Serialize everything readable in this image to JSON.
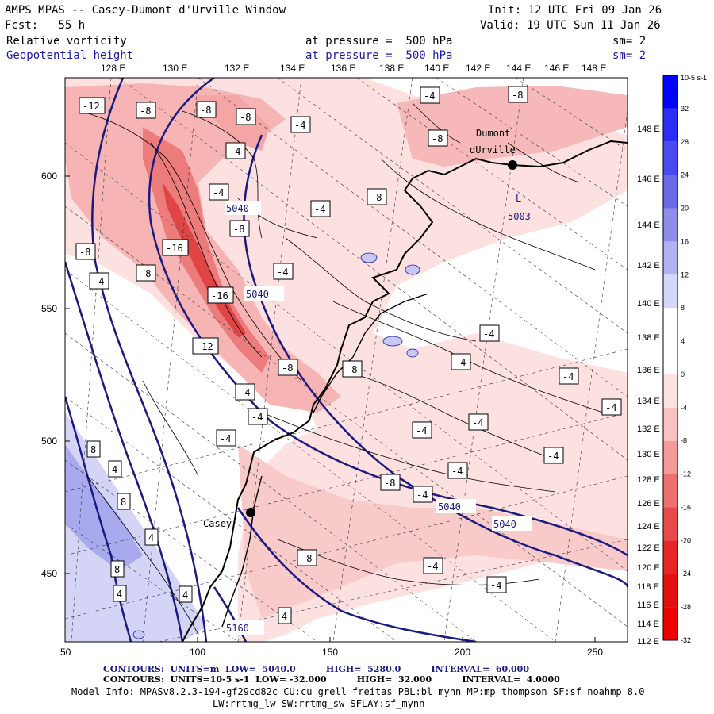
{
  "header": {
    "title": "AMPS MPAS -- Casey-Dumont d'Urville Window",
    "init": "Init: 12 UTC Fri 09 Jan 26",
    "fcst": "Fcst:   55 h",
    "valid": "Valid: 19 UTC Sun 11 Jan 26",
    "field1_name": "Relative vorticity",
    "field1_level": "at pressure =  500 hPa",
    "field1_sm": "sm= 2",
    "field2_name": "Geopotential height",
    "field2_level": "at pressure =  500 hPa",
    "field2_sm": "sm= 2"
  },
  "axes": {
    "top_lon_labels": [
      "128 E",
      "130 E",
      "132 E",
      "134 E",
      "136 E",
      "138 E",
      "140 E",
      "142 E",
      "144 E",
      "146 E",
      "148 E"
    ],
    "right_lat_labels": [
      "148 E",
      "146 E",
      "144 E",
      "142 E",
      "140 E",
      "138 E",
      "136 E",
      "134 E",
      "132 E",
      "130 E",
      "128 E",
      "126 E",
      "124 E",
      "122 E",
      "120 E",
      "118 E",
      "116 E",
      "114 E",
      "112 E"
    ],
    "x_ticks": [
      "50",
      "100",
      "150",
      "200",
      "250"
    ],
    "y_ticks": [
      "600",
      "550",
      "500",
      "450"
    ]
  },
  "colorbar": {
    "unit_label": "10-5 s-1",
    "labels": [
      "32",
      "28",
      "24",
      "20",
      "16",
      "12",
      "8",
      "4",
      "0",
      "-4",
      "-8",
      "-12",
      "-16",
      "-20",
      "-24",
      "-28",
      "-32"
    ],
    "colors": [
      "#0000ff",
      "#2d2df5",
      "#4a4aee",
      "#6a6ae8",
      "#8e8ee8",
      "#b2b2f0",
      "#d6d6f8",
      "#ffffff",
      "#ffffff",
      "#fde2e2",
      "#f9c2c2",
      "#f39a9a",
      "#ec7070",
      "#e74a4a",
      "#e42828",
      "#e31010",
      "#ee0000"
    ]
  },
  "map_labels": {
    "dumont": "Dumont",
    "durville": "dUrville",
    "casey": "Casey",
    "low_marker": "L",
    "low_value": "5003",
    "gph_5040_a": "5040",
    "gph_5040_b": "5040",
    "gph_5040_c": "5040",
    "gph_5040_d": "5040",
    "gph_5160": "5160"
  },
  "vort_boxes": [
    {
      "v": "-12"
    },
    {
      "v": "-8"
    },
    {
      "v": "-8"
    },
    {
      "v": "-8"
    },
    {
      "v": "-4"
    },
    {
      "v": "-4"
    },
    {
      "v": "-8"
    },
    {
      "v": "-8"
    },
    {
      "v": "-4"
    },
    {
      "v": "-4"
    },
    {
      "v": "-4"
    },
    {
      "v": "-8"
    },
    {
      "v": "-16"
    },
    {
      "v": "-8"
    },
    {
      "v": "-4"
    },
    {
      "v": "-4"
    },
    {
      "v": "-16"
    },
    {
      "v": "-12"
    },
    {
      "v": "-8"
    },
    {
      "v": "-8"
    },
    {
      "v": "-8"
    },
    {
      "v": "-8"
    },
    {
      "v": "-4"
    },
    {
      "v": "-4"
    },
    {
      "v": "-4"
    },
    {
      "v": "-4"
    },
    {
      "v": "-4"
    },
    {
      "v": "-4"
    },
    {
      "v": "-4"
    },
    {
      "v": "-4"
    },
    {
      "v": "-4"
    },
    {
      "v": "-4"
    },
    {
      "v": "-4"
    },
    {
      "v": "-8"
    },
    {
      "v": "-4"
    },
    {
      "v": "-4"
    },
    {
      "v": "-4"
    },
    {
      "v": "8"
    },
    {
      "v": "4"
    },
    {
      "v": "8"
    },
    {
      "v": "4"
    },
    {
      "v": "8"
    },
    {
      "v": "4"
    },
    {
      "v": "4"
    },
    {
      "v": "4"
    },
    {
      "v": "-8"
    }
  ],
  "footer": {
    "line1": "CONTOURS:  UNITS=m  LOW=  5040.0          HIGH=  5280.0          INTERVAL=  60.000",
    "line2": "CONTOURS:  UNITS=10-5 s-1  LOW= -32.000          HIGH=  32.000          INTERVAL=  4.0000",
    "model_info": "Model Info: MPASv8.2.3-194-gf29cd82c CU:cu_grell_freitas PBL:bl_mynn MP:mp_thompson SF:sf_noahmp 8.0",
    "model_info2": "LW:rrtmg_lw SW:rrtmg_sw SFLAY:sf_mynn"
  }
}
